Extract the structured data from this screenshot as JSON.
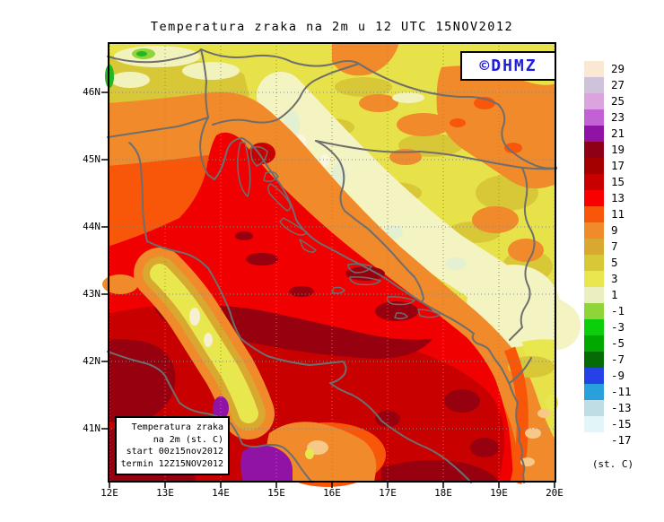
{
  "title": "Temperatura zraka na 2m u 12 UTC 15NOV2012",
  "watermark": {
    "text": "©DHMZ",
    "color": "#1E1EDC"
  },
  "info_box": {
    "lines": [
      "Temperatura zraka",
      "na 2m (st. C)",
      "start 00z15nov2012",
      "termin 12Z15NOV2012"
    ]
  },
  "axes": {
    "lat_labels": [
      "46N",
      "45N",
      "44N",
      "43N",
      "42N",
      "41N"
    ],
    "lon_labels": [
      "12E",
      "13E",
      "14E",
      "15E",
      "16E",
      "17E",
      "18E",
      "19E",
      "20E"
    ]
  },
  "legend": {
    "unit_label": "(st. C)",
    "items": [
      {
        "label": "29",
        "color": "#FBE8D3"
      },
      {
        "label": "27",
        "color": "#CEC3DA"
      },
      {
        "label": "25",
        "color": "#DBA4DF"
      },
      {
        "label": "23",
        "color": "#C261D3"
      },
      {
        "label": "21",
        "color": "#9013A5"
      },
      {
        "label": "19",
        "color": "#8E0016"
      },
      {
        "label": "17",
        "color": "#A40000"
      },
      {
        "label": "15",
        "color": "#C80000"
      },
      {
        "label": "13",
        "color": "#F80000"
      },
      {
        "label": "11",
        "color": "#F8570A"
      },
      {
        "label": "9",
        "color": "#F08A2A"
      },
      {
        "label": "7",
        "color": "#D8A830"
      },
      {
        "label": "5",
        "color": "#D8C838"
      },
      {
        "label": "3",
        "color": "#E8E84E"
      },
      {
        "label": "1",
        "color": "#EBEFC0"
      },
      {
        "label": "-1",
        "color": "#8FD438"
      },
      {
        "label": "-3",
        "color": "#0ACF0A"
      },
      {
        "label": "-5",
        "color": "#00A800"
      },
      {
        "label": "-7",
        "color": "#056B05"
      },
      {
        "label": "-9",
        "color": "#2442E8"
      },
      {
        "label": "-11",
        "color": "#28A0DC"
      },
      {
        "label": "-13",
        "color": "#BFDDE4"
      },
      {
        "label": "-15",
        "color": "#E2F6FA"
      },
      {
        "label": "-17",
        "color": "#FFFFFF"
      }
    ]
  }
}
